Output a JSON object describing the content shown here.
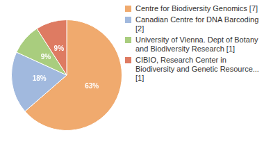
{
  "chart_data": {
    "type": "pie",
    "categories": [
      "Centre for Biodiversity Genomics [7]",
      "Canadian Centre for DNA Barcoding [2]",
      "University of Vienna. Dept of Botany and Biodiversity Research [1]",
      "CIBIO, Research Center in Biodiversity and Genetic Resource... [1]"
    ],
    "values": [
      63,
      18,
      9,
      9
    ],
    "value_labels": [
      "63%",
      "18%",
      "9%",
      "9%"
    ],
    "colors": [
      "#f0aa6e",
      "#a1b9de",
      "#a9cd7e",
      "#de7b62"
    ],
    "data_labels": true,
    "legend": "right"
  }
}
